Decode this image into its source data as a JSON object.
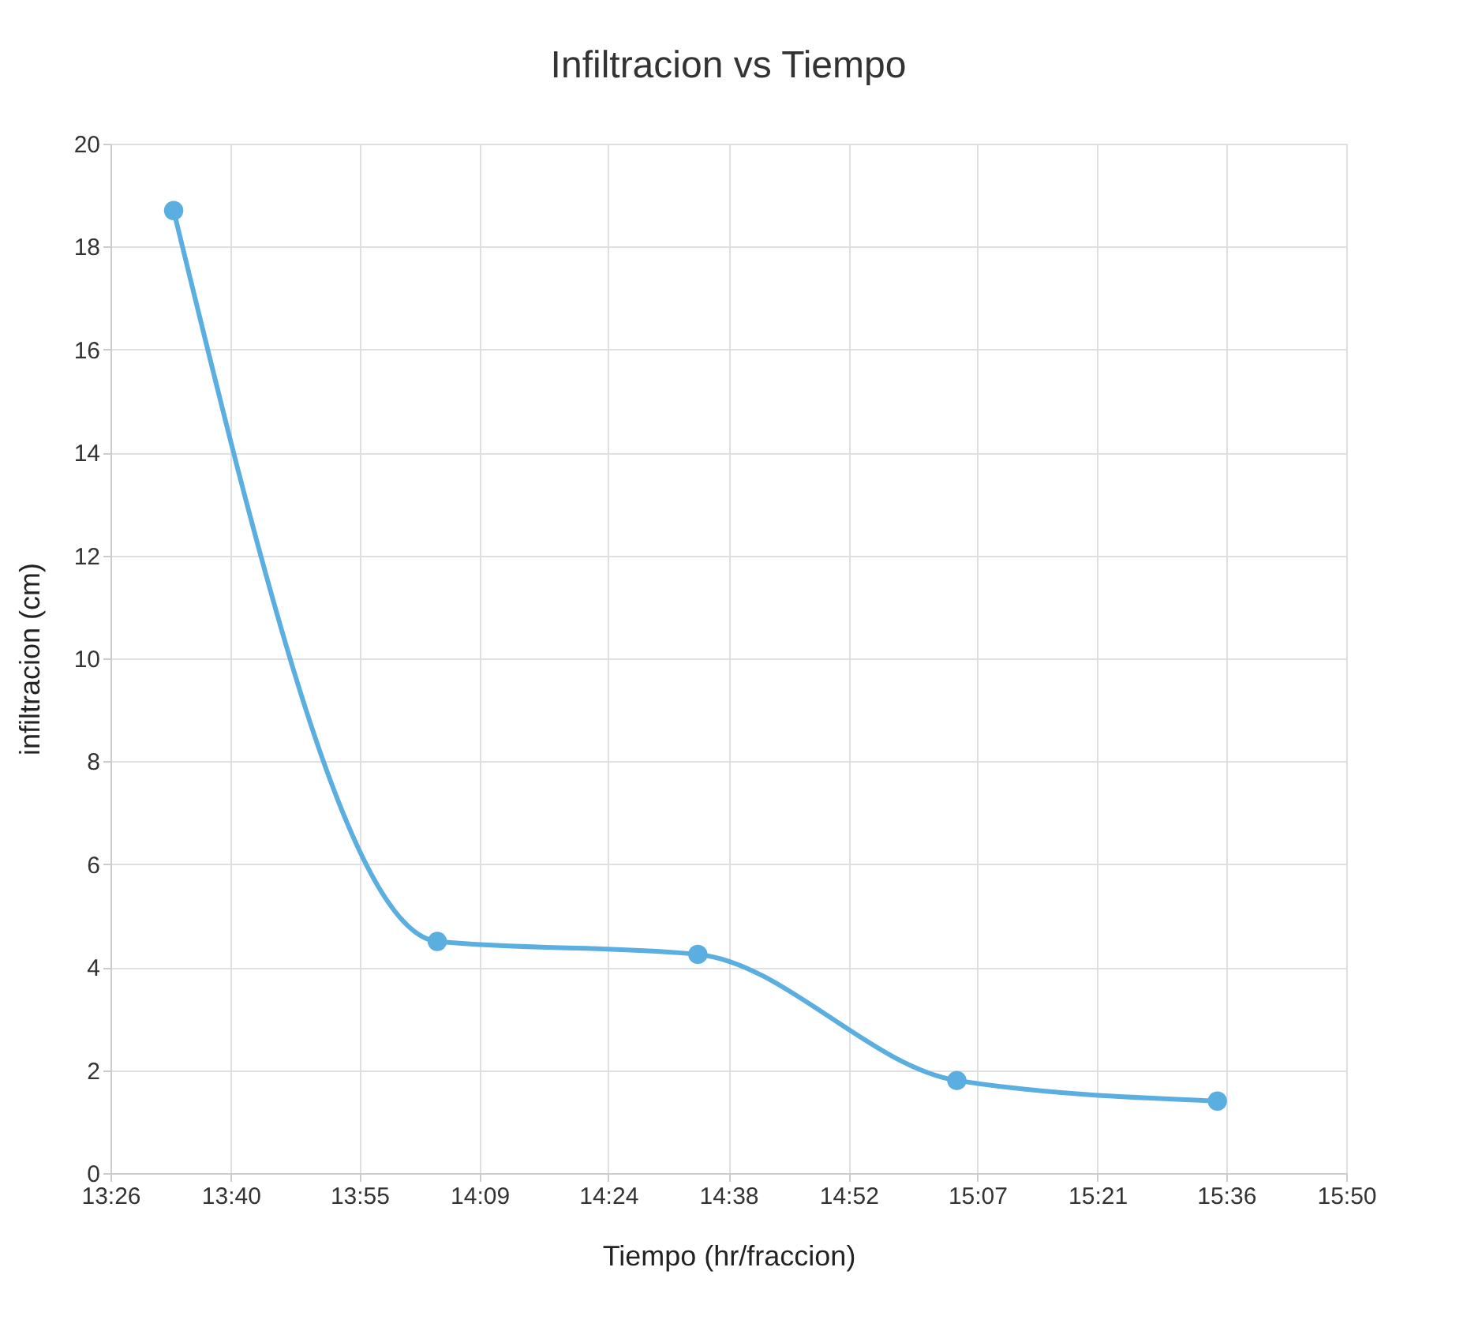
{
  "chart_data": {
    "type": "line",
    "title": "Infiltracion vs Tiempo",
    "xlabel": "Tiempo (hr/fraccion)",
    "ylabel": "infiltracion (cm)",
    "x": [
      13.556,
      14.068,
      14.574,
      15.077,
      15.583
    ],
    "series": [
      {
        "color": "#5aaee0",
        "values": [
          18.7,
          4.5,
          4.25,
          1.8,
          1.4
        ]
      }
    ],
    "xlim": [
      13.4333,
      15.8333
    ],
    "xticks": [
      {
        "value": 13.4333,
        "label": "13:26"
      },
      {
        "value": 13.6667,
        "label": "13:40"
      },
      {
        "value": 13.9167,
        "label": "13:55"
      },
      {
        "value": 14.15,
        "label": "14:09"
      },
      {
        "value": 14.4,
        "label": "14:24"
      },
      {
        "value": 14.6333,
        "label": "14:38"
      },
      {
        "value": 14.8667,
        "label": "14:52"
      },
      {
        "value": 15.1167,
        "label": "15:07"
      },
      {
        "value": 15.35,
        "label": "15:21"
      },
      {
        "value": 15.6,
        "label": "15:36"
      },
      {
        "value": 15.8333,
        "label": "15:50"
      }
    ],
    "ylim": [
      0,
      20
    ],
    "yticks": [
      0,
      2,
      4,
      6,
      8,
      10,
      12,
      14,
      16,
      18,
      20
    ],
    "grid": true,
    "marker": "circle",
    "line_style": "solid"
  }
}
